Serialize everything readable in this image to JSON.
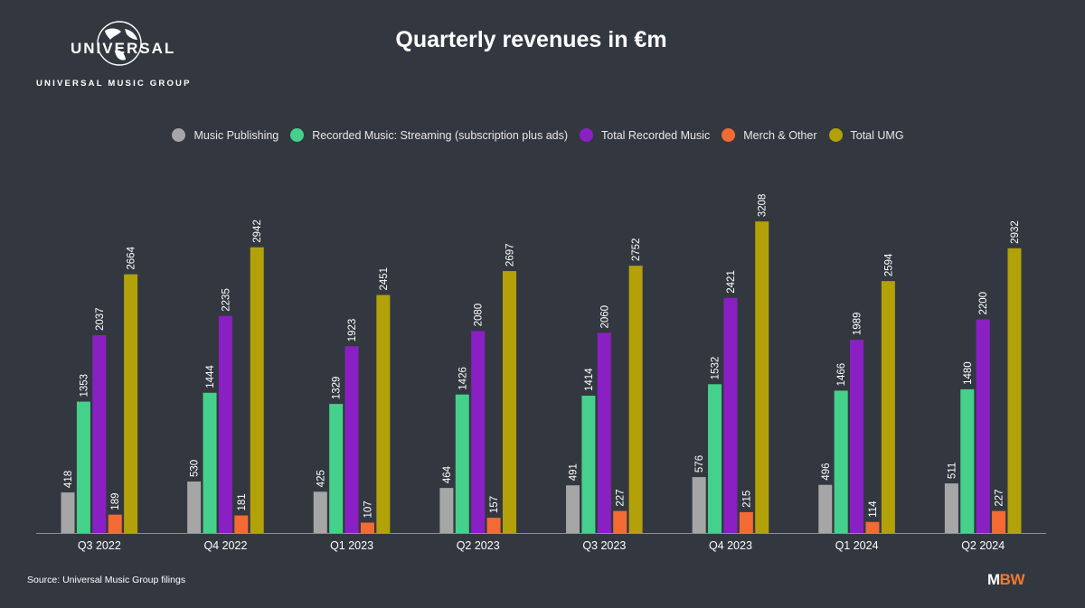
{
  "branding": {
    "logo_word": "UNIVERSAL",
    "logo_sub": "UNIVERSAL MUSIC GROUP",
    "source": "Source: Universal Music Group filings",
    "brand_m": "M",
    "brand_bw": "BW"
  },
  "chart_data": {
    "type": "bar",
    "title": "Quarterly revenues in €m",
    "xlabel": "",
    "ylabel": "",
    "ylim": [
      0,
      3300
    ],
    "grid": false,
    "legend_position": "top-center",
    "categories": [
      "Q3 2022",
      "Q4 2022",
      "Q1 2023",
      "Q2 2023",
      "Q3 2023",
      "Q4 2023",
      "Q1 2024",
      "Q2 2024"
    ],
    "series": [
      {
        "name": "Music Publishing",
        "color": "#a6a6a6",
        "values": [
          418,
          530,
          425,
          464,
          491,
          576,
          496,
          511
        ]
      },
      {
        "name": "Recorded Music: Streaming (subscription plus ads)",
        "color": "#45d18b",
        "values": [
          1353,
          1444,
          1329,
          1426,
          1414,
          1532,
          1466,
          1480
        ]
      },
      {
        "name": "Total Recorded Music",
        "color": "#8a20c4",
        "values": [
          2037,
          2235,
          1923,
          2080,
          2060,
          2421,
          1989,
          2200
        ]
      },
      {
        "name": "Merch & Other",
        "color": "#f46a35",
        "values": [
          189,
          181,
          107,
          157,
          227,
          215,
          114,
          227
        ]
      },
      {
        "name": "Total UMG",
        "color": "#b3a10a",
        "values": [
          2664,
          2942,
          2451,
          2697,
          2752,
          3208,
          2594,
          2932
        ]
      }
    ]
  }
}
